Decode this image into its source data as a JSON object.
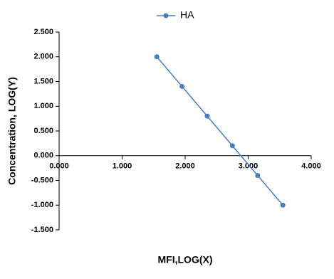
{
  "chart_data": {
    "type": "line",
    "x_label": "MFI,LOG(X)",
    "y_label": "Concentration,  LOG(Y)",
    "series": [
      {
        "name": "HA",
        "color": "#4a7ebb",
        "x": [
          1.55,
          1.95,
          2.35,
          2.75,
          3.15,
          3.55
        ],
        "values": [
          2.0,
          1.4,
          0.8,
          0.2,
          -0.4,
          -1.0
        ]
      }
    ],
    "xlim": [
      0,
      4
    ],
    "xticks": [
      {
        "value": 0,
        "label": "0.000"
      },
      {
        "value": 1,
        "label": "1.000"
      },
      {
        "value": 2,
        "label": "2.000"
      },
      {
        "value": 3,
        "label": "3.000"
      },
      {
        "value": 4,
        "label": "4.000"
      }
    ],
    "ylim": [
      -1.5,
      2.5
    ],
    "yticks": [
      {
        "value": -1.5,
        "label": "-1.500"
      },
      {
        "value": -1,
        "label": "-1.000"
      },
      {
        "value": -0.5,
        "label": "-0.500"
      },
      {
        "value": 0,
        "label": "0.000"
      },
      {
        "value": 0.5,
        "label": "0.500"
      },
      {
        "value": 1,
        "label": "1.000"
      },
      {
        "value": 1.5,
        "label": "1.500"
      },
      {
        "value": 2,
        "label": "2.000"
      },
      {
        "value": 2.5,
        "label": "2.500"
      }
    ],
    "legend": "top"
  }
}
